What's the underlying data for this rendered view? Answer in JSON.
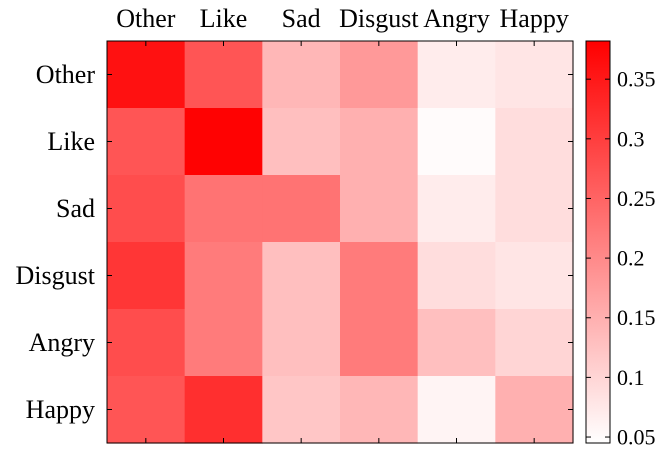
{
  "chart_data": {
    "type": "heatmap",
    "title": "",
    "xlabel": "",
    "ylabel": "",
    "x_categories": [
      "Other",
      "Like",
      "Sad",
      "Disgust",
      "Angry",
      "Happy"
    ],
    "y_categories": [
      "Other",
      "Like",
      "Sad",
      "Disgust",
      "Angry",
      "Happy"
    ],
    "x_axis_position": "top",
    "values": [
      [
        0.36,
        0.27,
        0.14,
        0.18,
        0.07,
        0.08
      ],
      [
        0.27,
        0.38,
        0.13,
        0.15,
        0.05,
        0.09
      ],
      [
        0.28,
        0.23,
        0.23,
        0.15,
        0.07,
        0.09
      ],
      [
        0.31,
        0.22,
        0.13,
        0.22,
        0.09,
        0.08
      ],
      [
        0.28,
        0.22,
        0.13,
        0.22,
        0.13,
        0.1
      ],
      [
        0.27,
        0.32,
        0.12,
        0.14,
        0.06,
        0.15
      ]
    ],
    "colormap": {
      "low": "#ffffff",
      "high": "#ff0000"
    },
    "colorbar": {
      "position": "right",
      "range": [
        0.045,
        0.382
      ],
      "ticks": [
        "0.05",
        "0.1",
        "0.15",
        "0.2",
        "0.25",
        "0.3",
        "0.35"
      ]
    }
  }
}
